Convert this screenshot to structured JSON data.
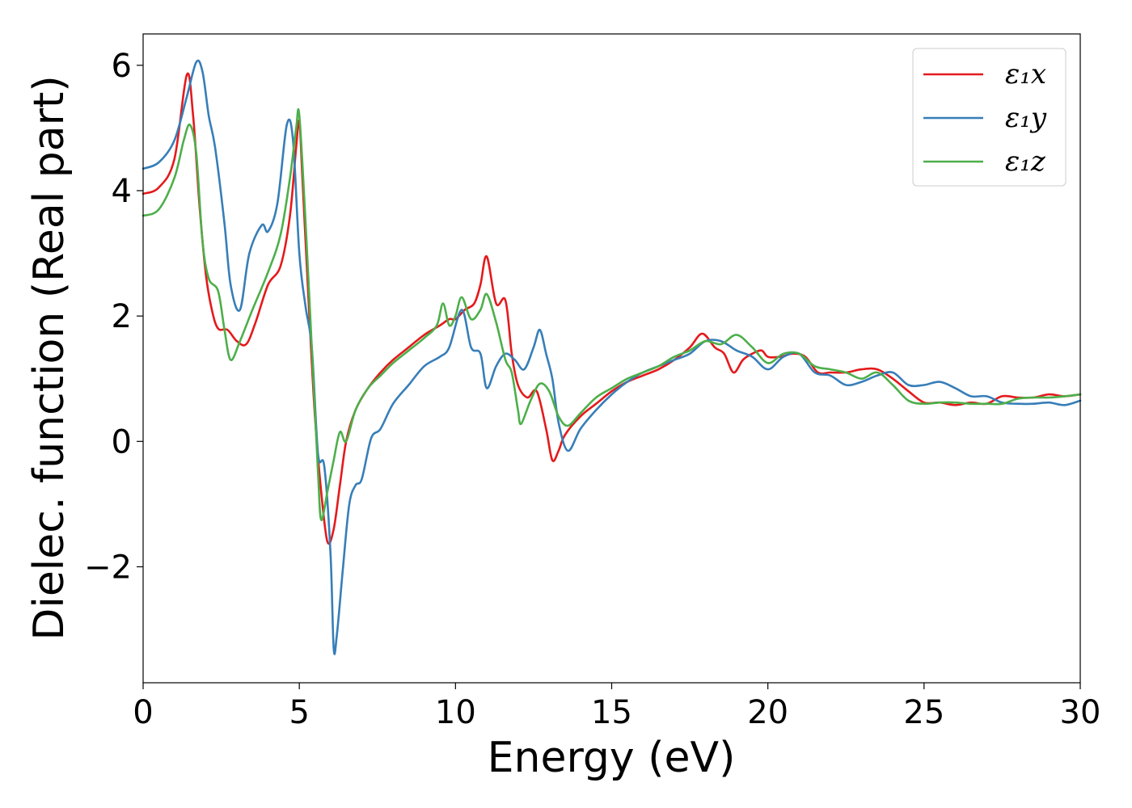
{
  "chart_data": {
    "type": "line",
    "title": "",
    "xlabel": "Energy (eV)",
    "ylabel": "Dielec. function (Real part)",
    "xlim": [
      0,
      30
    ],
    "ylim": [
      -3.85,
      6.5
    ],
    "xticks": [
      0,
      5,
      10,
      15,
      20,
      25,
      30
    ],
    "xtick_labels": [
      "0",
      "5",
      "10",
      "15",
      "20",
      "25",
      "30"
    ],
    "yticks": [
      -2,
      0,
      2,
      4,
      6
    ],
    "ytick_labels": [
      "−2",
      "0",
      "2",
      "4",
      "6"
    ],
    "grid": false,
    "legend_position": "top-right",
    "series": [
      {
        "name": "ε₁x",
        "color": "#e41a1c",
        "points": [
          [
            0,
            3.95
          ],
          [
            0.5,
            4.05
          ],
          [
            1.0,
            4.5
          ],
          [
            1.4,
            5.85
          ],
          [
            1.6,
            5.2
          ],
          [
            1.8,
            3.8
          ],
          [
            2.0,
            2.7
          ],
          [
            2.2,
            2.1
          ],
          [
            2.4,
            1.8
          ],
          [
            2.7,
            1.78
          ],
          [
            3.0,
            1.6
          ],
          [
            3.3,
            1.55
          ],
          [
            3.6,
            1.9
          ],
          [
            4.0,
            2.5
          ],
          [
            4.4,
            2.8
          ],
          [
            4.7,
            3.6
          ],
          [
            4.9,
            4.7
          ],
          [
            5.0,
            5.1
          ],
          [
            5.1,
            4.2
          ],
          [
            5.3,
            2.2
          ],
          [
            5.5,
            0.4
          ],
          [
            5.7,
            -0.8
          ],
          [
            5.9,
            -1.6
          ],
          [
            6.1,
            -1.4
          ],
          [
            6.3,
            -0.7
          ],
          [
            6.5,
            0.0
          ],
          [
            6.8,
            0.5
          ],
          [
            7.2,
            0.85
          ],
          [
            7.6,
            1.1
          ],
          [
            8.0,
            1.3
          ],
          [
            8.5,
            1.5
          ],
          [
            9.0,
            1.7
          ],
          [
            9.5,
            1.85
          ],
          [
            9.8,
            1.95
          ],
          [
            10.0,
            1.95
          ],
          [
            10.3,
            2.1
          ],
          [
            10.6,
            2.2
          ],
          [
            10.8,
            2.5
          ],
          [
            11.0,
            2.95
          ],
          [
            11.3,
            2.2
          ],
          [
            11.6,
            2.25
          ],
          [
            11.8,
            1.4
          ],
          [
            12.0,
            0.9
          ],
          [
            12.3,
            0.7
          ],
          [
            12.6,
            0.8
          ],
          [
            12.9,
            0.2
          ],
          [
            13.1,
            -0.3
          ],
          [
            13.3,
            -0.15
          ],
          [
            13.5,
            0.1
          ],
          [
            14.0,
            0.4
          ],
          [
            14.5,
            0.6
          ],
          [
            15.0,
            0.8
          ],
          [
            15.5,
            0.95
          ],
          [
            16.0,
            1.05
          ],
          [
            16.5,
            1.15
          ],
          [
            17.0,
            1.3
          ],
          [
            17.5,
            1.5
          ],
          [
            17.9,
            1.72
          ],
          [
            18.3,
            1.5
          ],
          [
            18.6,
            1.4
          ],
          [
            18.9,
            1.1
          ],
          [
            19.2,
            1.3
          ],
          [
            19.5,
            1.4
          ],
          [
            19.8,
            1.45
          ],
          [
            20.0,
            1.35
          ],
          [
            20.4,
            1.35
          ],
          [
            20.8,
            1.4
          ],
          [
            21.2,
            1.35
          ],
          [
            21.6,
            1.1
          ],
          [
            22.0,
            1.1
          ],
          [
            22.5,
            1.1
          ],
          [
            23.0,
            1.15
          ],
          [
            23.5,
            1.15
          ],
          [
            24.0,
            1.0
          ],
          [
            24.5,
            0.8
          ],
          [
            25.0,
            0.62
          ],
          [
            25.5,
            0.62
          ],
          [
            26.0,
            0.58
          ],
          [
            26.5,
            0.62
          ],
          [
            27.0,
            0.6
          ],
          [
            27.5,
            0.72
          ],
          [
            28.0,
            0.7
          ],
          [
            28.5,
            0.7
          ],
          [
            29.0,
            0.75
          ],
          [
            29.5,
            0.72
          ],
          [
            30.0,
            0.75
          ]
        ]
      },
      {
        "name": "ε₁y",
        "color": "#377eb8",
        "points": [
          [
            0,
            4.35
          ],
          [
            0.5,
            4.45
          ],
          [
            1.0,
            4.8
          ],
          [
            1.4,
            5.5
          ],
          [
            1.7,
            6.05
          ],
          [
            1.9,
            5.9
          ],
          [
            2.1,
            5.2
          ],
          [
            2.3,
            4.7
          ],
          [
            2.6,
            3.5
          ],
          [
            2.8,
            2.5
          ],
          [
            3.1,
            2.1
          ],
          [
            3.4,
            3.0
          ],
          [
            3.8,
            3.45
          ],
          [
            4.0,
            3.35
          ],
          [
            4.3,
            3.8
          ],
          [
            4.6,
            5.05
          ],
          [
            4.8,
            4.8
          ],
          [
            5.0,
            3.0
          ],
          [
            5.2,
            2.15
          ],
          [
            5.4,
            1.5
          ],
          [
            5.6,
            -0.2
          ],
          [
            5.8,
            -0.4
          ],
          [
            6.0,
            -1.8
          ],
          [
            6.1,
            -3.3
          ],
          [
            6.2,
            -3.1
          ],
          [
            6.4,
            -2.0
          ],
          [
            6.6,
            -1.0
          ],
          [
            6.8,
            -0.7
          ],
          [
            7.0,
            -0.6
          ],
          [
            7.3,
            0.05
          ],
          [
            7.6,
            0.2
          ],
          [
            8.0,
            0.6
          ],
          [
            8.5,
            0.9
          ],
          [
            9.0,
            1.2
          ],
          [
            9.5,
            1.35
          ],
          [
            9.8,
            1.5
          ],
          [
            10.2,
            2.1
          ],
          [
            10.5,
            1.5
          ],
          [
            10.8,
            1.4
          ],
          [
            11.0,
            0.85
          ],
          [
            11.3,
            1.2
          ],
          [
            11.6,
            1.4
          ],
          [
            11.9,
            1.3
          ],
          [
            12.2,
            1.15
          ],
          [
            12.5,
            1.5
          ],
          [
            12.7,
            1.78
          ],
          [
            12.9,
            1.4
          ],
          [
            13.1,
            1.0
          ],
          [
            13.3,
            0.3
          ],
          [
            13.6,
            -0.15
          ],
          [
            14.0,
            0.2
          ],
          [
            14.5,
            0.5
          ],
          [
            15.0,
            0.75
          ],
          [
            15.5,
            0.95
          ],
          [
            16.0,
            1.1
          ],
          [
            16.5,
            1.2
          ],
          [
            17.0,
            1.3
          ],
          [
            17.5,
            1.4
          ],
          [
            18.0,
            1.6
          ],
          [
            18.5,
            1.6
          ],
          [
            19.0,
            1.45
          ],
          [
            19.5,
            1.35
          ],
          [
            20.0,
            1.15
          ],
          [
            20.5,
            1.35
          ],
          [
            21.0,
            1.4
          ],
          [
            21.5,
            1.1
          ],
          [
            22.0,
            1.05
          ],
          [
            22.5,
            0.9
          ],
          [
            23.0,
            0.95
          ],
          [
            23.5,
            1.05
          ],
          [
            24.0,
            1.1
          ],
          [
            24.5,
            0.9
          ],
          [
            25.0,
            0.9
          ],
          [
            25.5,
            0.95
          ],
          [
            26.0,
            0.85
          ],
          [
            26.5,
            0.72
          ],
          [
            27.0,
            0.72
          ],
          [
            27.5,
            0.62
          ],
          [
            28.0,
            0.6
          ],
          [
            28.5,
            0.6
          ],
          [
            29.0,
            0.62
          ],
          [
            29.5,
            0.58
          ],
          [
            30.0,
            0.65
          ]
        ]
      },
      {
        "name": "ε₁z",
        "color": "#4daf4a",
        "points": [
          [
            0,
            3.6
          ],
          [
            0.5,
            3.7
          ],
          [
            1.0,
            4.2
          ],
          [
            1.3,
            4.8
          ],
          [
            1.5,
            5.05
          ],
          [
            1.7,
            4.6
          ],
          [
            1.9,
            3.2
          ],
          [
            2.1,
            2.6
          ],
          [
            2.4,
            2.4
          ],
          [
            2.6,
            1.8
          ],
          [
            2.8,
            1.3
          ],
          [
            3.1,
            1.6
          ],
          [
            3.5,
            2.1
          ],
          [
            4.0,
            2.7
          ],
          [
            4.4,
            3.3
          ],
          [
            4.7,
            4.2
          ],
          [
            4.9,
            5.0
          ],
          [
            5.0,
            5.2
          ],
          [
            5.2,
            3.5
          ],
          [
            5.4,
            1.5
          ],
          [
            5.6,
            -0.5
          ],
          [
            5.7,
            -1.25
          ],
          [
            5.9,
            -0.8
          ],
          [
            6.1,
            -0.3
          ],
          [
            6.3,
            0.15
          ],
          [
            6.5,
            0.0
          ],
          [
            6.8,
            0.5
          ],
          [
            7.2,
            0.85
          ],
          [
            7.6,
            1.05
          ],
          [
            8.0,
            1.25
          ],
          [
            8.5,
            1.45
          ],
          [
            9.0,
            1.65
          ],
          [
            9.4,
            1.85
          ],
          [
            9.6,
            2.2
          ],
          [
            9.8,
            1.85
          ],
          [
            10.0,
            2.0
          ],
          [
            10.2,
            2.3
          ],
          [
            10.5,
            1.95
          ],
          [
            10.8,
            2.1
          ],
          [
            11.0,
            2.35
          ],
          [
            11.3,
            1.9
          ],
          [
            11.6,
            1.3
          ],
          [
            11.8,
            1.1
          ],
          [
            12.0,
            0.5
          ],
          [
            12.1,
            0.28
          ],
          [
            12.4,
            0.65
          ],
          [
            12.7,
            0.92
          ],
          [
            13.0,
            0.8
          ],
          [
            13.3,
            0.4
          ],
          [
            13.6,
            0.25
          ],
          [
            14.0,
            0.45
          ],
          [
            14.5,
            0.7
          ],
          [
            15.0,
            0.85
          ],
          [
            15.5,
            1.0
          ],
          [
            16.0,
            1.1
          ],
          [
            16.5,
            1.2
          ],
          [
            17.0,
            1.35
          ],
          [
            17.5,
            1.45
          ],
          [
            18.0,
            1.6
          ],
          [
            18.5,
            1.55
          ],
          [
            19.0,
            1.7
          ],
          [
            19.5,
            1.5
          ],
          [
            20.0,
            1.25
          ],
          [
            20.5,
            1.4
          ],
          [
            21.0,
            1.4
          ],
          [
            21.5,
            1.2
          ],
          [
            22.0,
            1.15
          ],
          [
            22.5,
            1.1
          ],
          [
            23.0,
            1.0
          ],
          [
            23.5,
            1.1
          ],
          [
            24.0,
            0.9
          ],
          [
            24.5,
            0.65
          ],
          [
            25.0,
            0.6
          ],
          [
            25.5,
            0.62
          ],
          [
            26.0,
            0.62
          ],
          [
            26.5,
            0.6
          ],
          [
            27.0,
            0.6
          ],
          [
            27.5,
            0.6
          ],
          [
            28.0,
            0.68
          ],
          [
            28.5,
            0.7
          ],
          [
            29.0,
            0.7
          ],
          [
            29.5,
            0.72
          ],
          [
            30.0,
            0.75
          ]
        ]
      }
    ]
  }
}
